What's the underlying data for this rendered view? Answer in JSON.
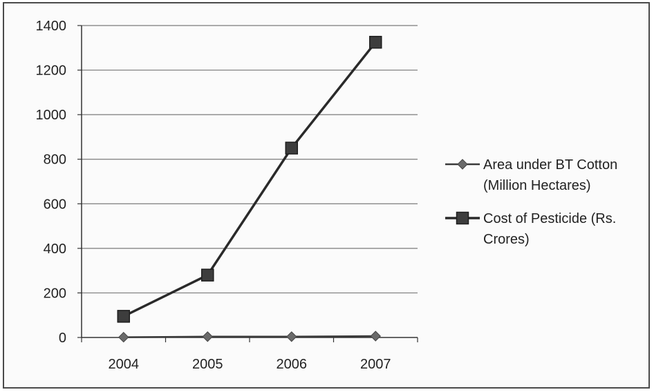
{
  "chart_data": {
    "type": "line",
    "categories": [
      "2004",
      "2005",
      "2006",
      "2007"
    ],
    "ylim": [
      0,
      1400
    ],
    "yticks": [
      0,
      200,
      400,
      600,
      800,
      1000,
      1200,
      1400
    ],
    "grid": true,
    "legend_position": "right",
    "series": [
      {
        "name": "Area under BT Cotton (Million Hectares)",
        "legend_lines": [
          "Area under BT Cotton",
          "(Million Hectares)"
        ],
        "marker": "diamond",
        "color": "#3a3a3a",
        "values": [
          1.3,
          3.8,
          3.8,
          6.2
        ]
      },
      {
        "name": "Cost of Pesticide (Rs. Crores)",
        "legend_lines": [
          "Cost of Pesticide (Rs.",
          "Crores)"
        ],
        "marker": "square",
        "color": "#2a2a2a",
        "values": [
          95,
          280,
          850,
          1325
        ]
      }
    ]
  }
}
